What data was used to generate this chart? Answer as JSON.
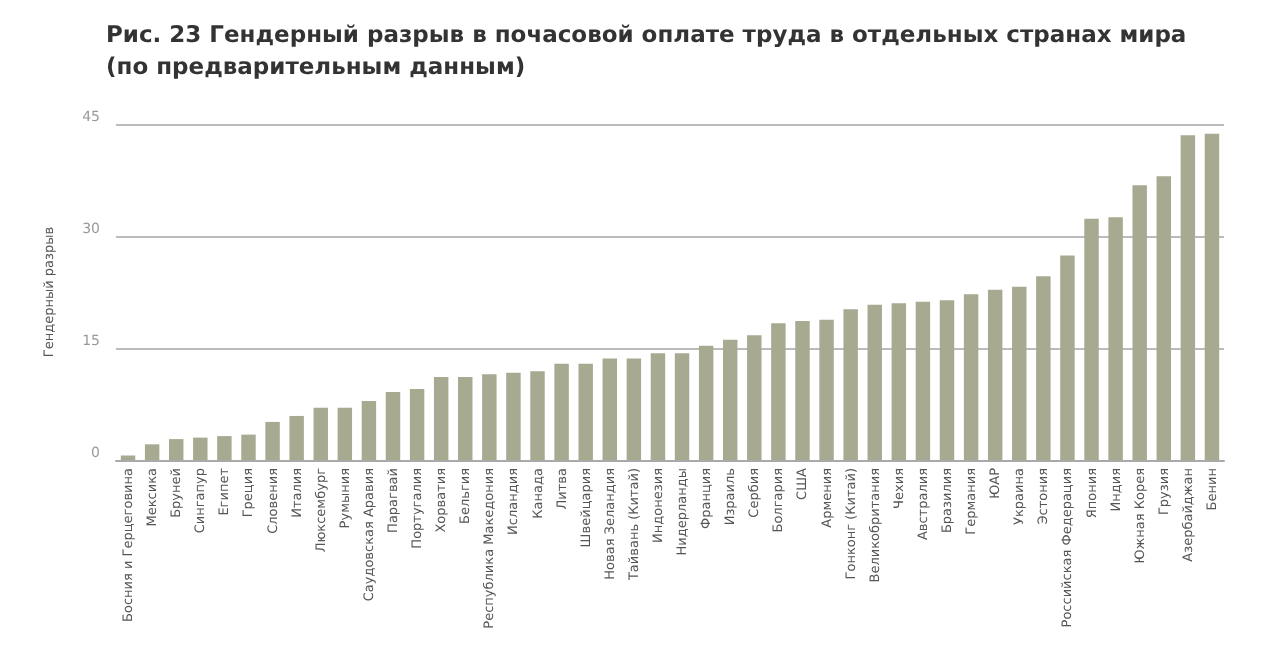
{
  "chart_data": {
    "type": "bar",
    "title": "Рис. 23 Гендерный разрыв в почасовой оплате труда в отдельных странах мира\n(по предварительным данным)",
    "ylabel": "Гендерный разрыв",
    "categories": [
      "Босния и Герцеговина",
      "Мексика",
      "Бруней",
      "Сингапур",
      "Египет",
      "Греция",
      "Словения",
      "Италия",
      "Люксембург",
      "Румыния",
      "Саудовская Аравия",
      "Парагвай",
      "Португалия",
      "Хорватия",
      "Бельгия",
      "Республика Македония",
      "Исландия",
      "Канада",
      "Литва",
      "Швейцария",
      "Новая Зеландия",
      "Тайвань (Китай)",
      "Индонезия",
      "Нидерланды",
      "Франция",
      "Израиль",
      "Сербия",
      "Болгария",
      "США",
      "Армения",
      "Гонконг (Китай)",
      "Великобритания",
      "Чехия",
      "Австралия",
      "Бразилия",
      "Германия",
      "ЮАР",
      "Украина",
      "Эстония",
      "Российская Федерация",
      "Япония",
      "Индия",
      "Южная Корея",
      "Грузия",
      "Азербайджан",
      "Бенин"
    ],
    "values": [
      0.6,
      2.1,
      2.8,
      3.0,
      3.2,
      3.4,
      5.1,
      5.9,
      7.0,
      7.0,
      7.9,
      9.1,
      9.5,
      11.1,
      11.1,
      11.5,
      11.7,
      11.9,
      12.9,
      12.9,
      13.6,
      13.6,
      14.3,
      14.3,
      15.3,
      16.1,
      16.7,
      18.3,
      18.6,
      18.8,
      20.2,
      20.8,
      21.0,
      21.2,
      21.4,
      22.2,
      22.8,
      23.2,
      24.6,
      27.4,
      32.3,
      32.5,
      36.8,
      38.0,
      43.5,
      43.7
    ],
    "color": "#a8a991",
    "ylim": [
      0,
      45
    ],
    "yticks": [
      0,
      15,
      30,
      45
    ],
    "grid": "y"
  }
}
